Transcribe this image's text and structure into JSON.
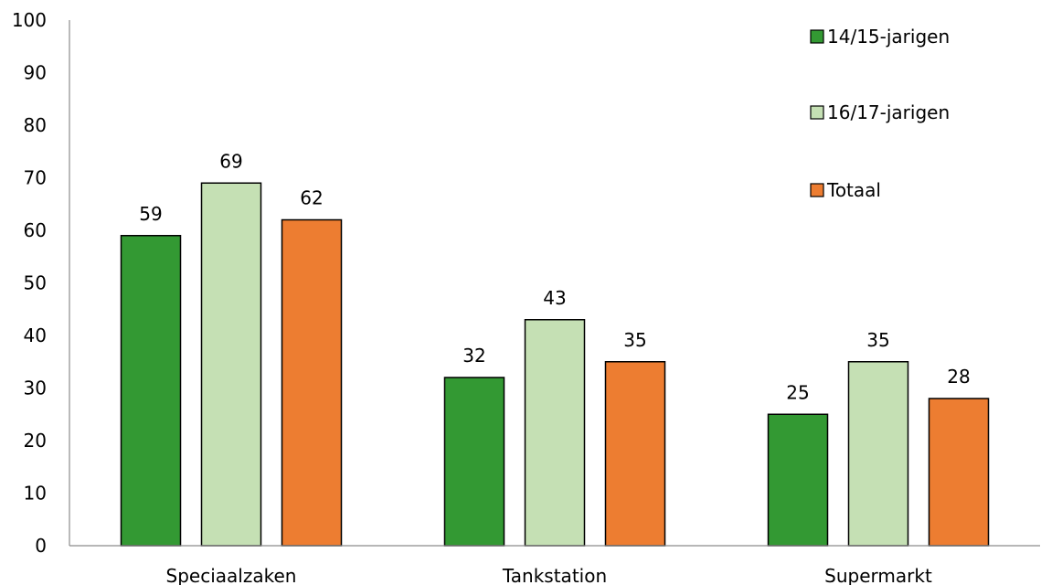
{
  "chart_data": {
    "type": "bar",
    "title": "",
    "xlabel": "",
    "ylabel": "",
    "categories": [
      "Speciaalzaken",
      "Tankstation",
      "Supermarkt"
    ],
    "series": [
      {
        "name": "14/15-jarigen",
        "values": [
          59,
          32,
          25
        ],
        "color": "#339933"
      },
      {
        "name": "16/17-jarigen",
        "values": [
          69,
          43,
          35
        ],
        "color": "#c5e0b4"
      },
      {
        "name": "Totaal",
        "values": [
          62,
          35,
          28
        ],
        "color": "#ed7d31"
      }
    ],
    "ylim": [
      0,
      100
    ],
    "yticks": [
      0,
      10,
      20,
      30,
      40,
      50,
      60,
      70,
      80,
      90,
      100
    ],
    "grid": false,
    "legend": "top-right",
    "data_labels": true
  }
}
